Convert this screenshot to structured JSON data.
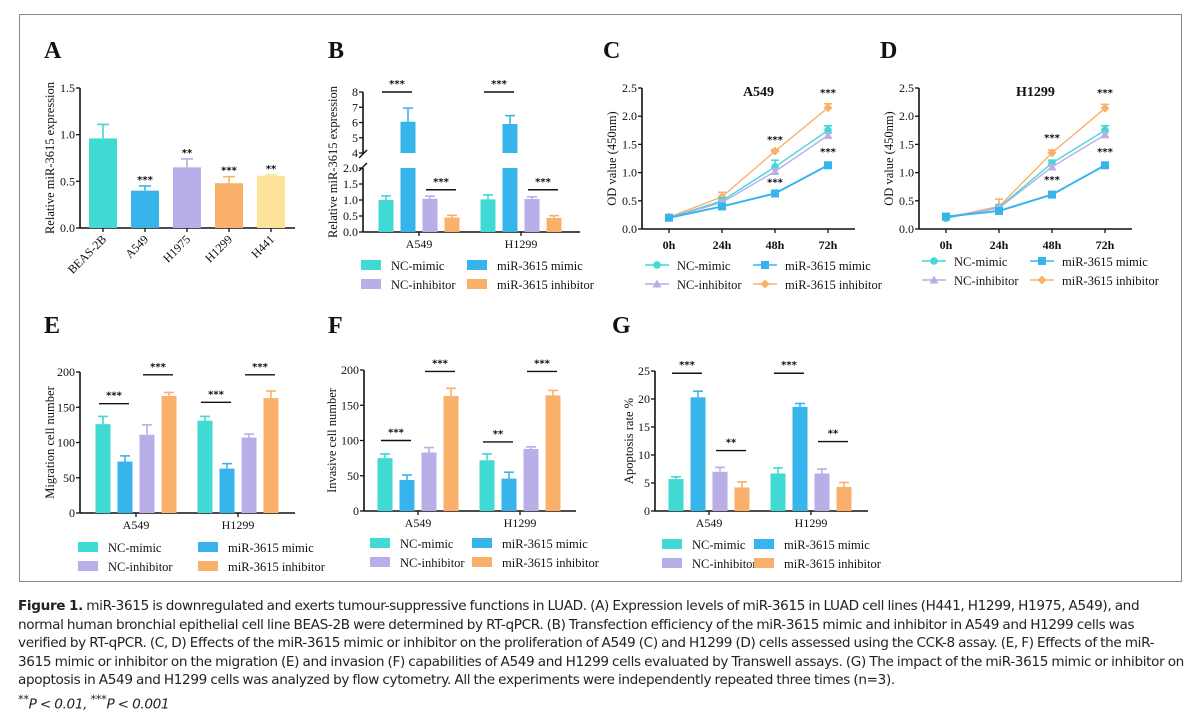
{
  "colors": {
    "nc_mimic": "#40D9D3",
    "mir_mimic": "#38B4EC",
    "nc_inhibitor": "#B9AEE8",
    "mir_inhibitor": "#F9B06A",
    "h441": "#FCE39A"
  },
  "legend": [
    {
      "key": "nc_mimic",
      "label": "NC-mimic"
    },
    {
      "key": "mir_mimic",
      "label": "miR-3615 mimic"
    },
    {
      "key": "nc_inhibitor",
      "label": "NC-inhibitor"
    },
    {
      "key": "mir_inhibitor",
      "label": "miR-3615 inhibitor"
    }
  ],
  "chart_data": [
    {
      "panel": "A",
      "type": "bar",
      "title": "",
      "xlabel": "",
      "ylabel": "Relative miR-3615 expression",
      "ylim": [
        0,
        1.5
      ],
      "yticks": [
        "0.0",
        "0.5",
        "1.0",
        "1.5"
      ],
      "categories": [
        "BEAS-2B",
        "A549",
        "H1975",
        "H1299",
        "H441"
      ],
      "values": [
        0.96,
        0.4,
        0.65,
        0.48,
        0.56
      ],
      "errors": [
        0.15,
        0.05,
        0.09,
        0.07,
        0.01
      ],
      "significance": [
        "",
        "***",
        "**",
        "***",
        "**"
      ],
      "bar_colors": [
        "nc_mimic",
        "mir_mimic",
        "nc_inhibitor",
        "mir_inhibitor",
        "h441"
      ]
    },
    {
      "panel": "B",
      "type": "bar",
      "ylabel": "Relative miR-3615 expression",
      "ylim": [
        0,
        8
      ],
      "axis_break": [
        2.0,
        4
      ],
      "yticks_lower": [
        "0.0",
        "0.5",
        "1.0",
        "1.5",
        "2.0"
      ],
      "yticks_upper": [
        "4",
        "5",
        "6",
        "7",
        "8"
      ],
      "categories": [
        "A549",
        "H1299"
      ],
      "series": [
        {
          "name": "NC-mimic",
          "key": "nc_mimic",
          "values": [
            1.0,
            1.02
          ],
          "errors": [
            0.13,
            0.14
          ]
        },
        {
          "name": "miR-3615 mimic",
          "key": "mir_mimic",
          "values": [
            6.05,
            5.9
          ],
          "errors": [
            0.9,
            0.55
          ]
        },
        {
          "name": "NC-inhibitor",
          "key": "nc_inhibitor",
          "values": [
            1.04,
            1.03
          ],
          "errors": [
            0.08,
            0.07
          ]
        },
        {
          "name": "miR-3615 inhibitor",
          "key": "mir_inhibitor",
          "values": [
            0.45,
            0.44
          ],
          "errors": [
            0.07,
            0.07
          ]
        }
      ],
      "comparisons": [
        {
          "group": 0,
          "pair": [
            0,
            1
          ],
          "label": "***",
          "at": 8.0
        },
        {
          "group": 0,
          "pair": [
            2,
            3
          ],
          "label": "***",
          "at": 1.32
        },
        {
          "group": 1,
          "pair": [
            0,
            1
          ],
          "label": "***",
          "at": 8.0
        },
        {
          "group": 1,
          "pair": [
            2,
            3
          ],
          "label": "***",
          "at": 1.32
        }
      ]
    },
    {
      "panel": "C",
      "type": "line",
      "title": "A549",
      "ylabel": "OD value (450nm)",
      "ylim": [
        0,
        2.5
      ],
      "yticks": [
        "0.0",
        "0.5",
        "1.0",
        "1.5",
        "2.0",
        "2.5"
      ],
      "x": [
        "0h",
        "24h",
        "48h",
        "72h"
      ],
      "series": [
        {
          "name": "NC-mimic",
          "key": "nc_mimic",
          "marker": "circle",
          "values": [
            0.2,
            0.5,
            1.1,
            1.75
          ],
          "errors": [
            0.02,
            0.05,
            0.12,
            0.08
          ]
        },
        {
          "name": "NC-inhibitor",
          "key": "nc_inhibitor",
          "marker": "triangle",
          "values": [
            0.2,
            0.47,
            1.02,
            1.66
          ],
          "errors": [
            0.02,
            0.04,
            0.05,
            0.04
          ]
        },
        {
          "name": "miR-3615 mimic",
          "key": "mir_mimic",
          "marker": "square",
          "values": [
            0.2,
            0.4,
            0.63,
            1.13
          ],
          "errors": [
            0.02,
            0.03,
            0.04,
            0.04
          ]
        },
        {
          "name": "miR-3615 inhibitor",
          "key": "mir_inhibitor",
          "marker": "diamond",
          "values": [
            0.21,
            0.57,
            1.38,
            2.15
          ],
          "errors": [
            0.02,
            0.08,
            0.03,
            0.07
          ]
        }
      ],
      "significance": [
        {
          "x": "48h",
          "y": 1.38,
          "label": "***"
        },
        {
          "x": "48h",
          "y": 0.63,
          "label": "***"
        },
        {
          "x": "72h",
          "y": 2.22,
          "label": "***"
        },
        {
          "x": "72h",
          "y": 1.17,
          "label": "***"
        }
      ]
    },
    {
      "panel": "D",
      "type": "line",
      "title": "H1299",
      "ylabel": "OD value (450nm)",
      "ylim": [
        0,
        2.5
      ],
      "yticks": [
        "0.0",
        "0.5",
        "1.0",
        "1.5",
        "2.0",
        "2.5"
      ],
      "x": [
        "0h",
        "24h",
        "48h",
        "72h"
      ],
      "series": [
        {
          "name": "NC-mimic",
          "key": "nc_mimic",
          "marker": "circle",
          "values": [
            0.19,
            0.38,
            1.17,
            1.75
          ],
          "errors": [
            0.02,
            0.05,
            0.05,
            0.08
          ]
        },
        {
          "name": "NC-inhibitor",
          "key": "nc_inhibitor",
          "marker": "triangle",
          "values": [
            0.21,
            0.37,
            1.1,
            1.67
          ],
          "errors": [
            0.02,
            0.03,
            0.04,
            0.04
          ]
        },
        {
          "name": "miR-3615 mimic",
          "key": "mir_mimic",
          "marker": "square",
          "values": [
            0.22,
            0.32,
            0.61,
            1.13
          ],
          "errors": [
            0.03,
            0.03,
            0.05,
            0.04
          ]
        },
        {
          "name": "miR-3615 inhibitor",
          "key": "mir_inhibitor",
          "marker": "diamond",
          "values": [
            0.2,
            0.4,
            1.35,
            2.14
          ],
          "errors": [
            0.02,
            0.13,
            0.05,
            0.07
          ]
        }
      ],
      "significance": [
        {
          "x": "48h",
          "y": 1.42,
          "label": "***"
        },
        {
          "x": "48h",
          "y": 0.67,
          "label": "***"
        },
        {
          "x": "72h",
          "y": 2.22,
          "label": "***"
        },
        {
          "x": "72h",
          "y": 1.17,
          "label": "***"
        }
      ]
    },
    {
      "panel": "E",
      "type": "bar",
      "ylabel": "Migration cell number",
      "ylim": [
        0,
        200
      ],
      "yticks": [
        "0",
        "50",
        "100",
        "150",
        "200"
      ],
      "categories": [
        "A549",
        "H1299"
      ],
      "series": [
        {
          "name": "NC-mimic",
          "key": "nc_mimic",
          "values": [
            126,
            131
          ],
          "errors": [
            11,
            6
          ]
        },
        {
          "name": "miR-3615 mimic",
          "key": "mir_mimic",
          "values": [
            73,
            63
          ],
          "errors": [
            8,
            7
          ]
        },
        {
          "name": "NC-inhibitor",
          "key": "nc_inhibitor",
          "values": [
            111,
            107
          ],
          "errors": [
            14,
            5
          ]
        },
        {
          "name": "miR-3615 inhibitor",
          "key": "mir_inhibitor",
          "values": [
            166,
            163
          ],
          "errors": [
            5,
            10
          ]
        }
      ],
      "comparisons": [
        {
          "group": 0,
          "pair": [
            0,
            1
          ],
          "label": "***",
          "at": 155
        },
        {
          "group": 0,
          "pair": [
            2,
            3
          ],
          "label": "***",
          "at": 196
        },
        {
          "group": 1,
          "pair": [
            0,
            1
          ],
          "label": "***",
          "at": 157
        },
        {
          "group": 1,
          "pair": [
            2,
            3
          ],
          "label": "***",
          "at": 196
        }
      ]
    },
    {
      "panel": "F",
      "type": "bar",
      "ylabel": "Invasive cell number",
      "ylim": [
        0,
        200
      ],
      "yticks": [
        "0",
        "50",
        "100",
        "150",
        "200"
      ],
      "categories": [
        "A549",
        "H1299"
      ],
      "series": [
        {
          "name": "NC-mimic",
          "key": "nc_mimic",
          "values": [
            75,
            72
          ],
          "errors": [
            6,
            9
          ]
        },
        {
          "name": "miR-3615 mimic",
          "key": "mir_mimic",
          "values": [
            44,
            46
          ],
          "errors": [
            7,
            9
          ]
        },
        {
          "name": "NC-inhibitor",
          "key": "nc_inhibitor",
          "values": [
            83,
            88
          ],
          "errors": [
            7,
            3
          ]
        },
        {
          "name": "miR-3615 inhibitor",
          "key": "mir_inhibitor",
          "values": [
            163,
            164
          ],
          "errors": [
            11,
            7
          ]
        }
      ],
      "comparisons": [
        {
          "group": 0,
          "pair": [
            0,
            1
          ],
          "label": "***",
          "at": 100
        },
        {
          "group": 0,
          "pair": [
            2,
            3
          ],
          "label": "***",
          "at": 198
        },
        {
          "group": 1,
          "pair": [
            0,
            1
          ],
          "label": "**",
          "at": 98
        },
        {
          "group": 1,
          "pair": [
            2,
            3
          ],
          "label": "***",
          "at": 198
        }
      ]
    },
    {
      "panel": "G",
      "type": "bar",
      "ylabel": "Apoptosis rate %",
      "ylim": [
        0,
        25
      ],
      "yticks": [
        "0",
        "5",
        "10",
        "15",
        "20",
        "25"
      ],
      "categories": [
        "A549",
        "H1299"
      ],
      "series": [
        {
          "name": "NC-mimic",
          "key": "nc_mimic",
          "values": [
            5.7,
            6.7
          ],
          "errors": [
            0.4,
            1.0
          ]
        },
        {
          "name": "miR-3615 mimic",
          "key": "mir_mimic",
          "values": [
            20.3,
            18.6
          ],
          "errors": [
            1.1,
            0.6
          ]
        },
        {
          "name": "NC-inhibitor",
          "key": "nc_inhibitor",
          "values": [
            7.0,
            6.7
          ],
          "errors": [
            0.8,
            0.8
          ]
        },
        {
          "name": "miR-3615 inhibitor",
          "key": "mir_inhibitor",
          "values": [
            4.2,
            4.3
          ],
          "errors": [
            1.0,
            0.8
          ]
        }
      ],
      "comparisons": [
        {
          "group": 0,
          "pair": [
            0,
            1
          ],
          "label": "***",
          "at": 24.6
        },
        {
          "group": 0,
          "pair": [
            2,
            3
          ],
          "label": "**",
          "at": 10.8
        },
        {
          "group": 1,
          "pair": [
            0,
            1
          ],
          "label": "***",
          "at": 24.6
        },
        {
          "group": 1,
          "pair": [
            2,
            3
          ],
          "label": "**",
          "at": 12.4
        }
      ]
    }
  ],
  "caption": {
    "label": "Figure 1.",
    "text": " miR-3615 is downregulated and exerts tumour-suppressive functions in LUAD. (A) Expression levels of miR-3615 in LUAD cell lines (H441, H1299, H1975, A549), and normal human bronchial epithelial cell line BEAS-2B were determined by RT-qPCR. (B) Transfection efficiency of the miR-3615 mimic and inhibitor in A549 and H1299 cells was verified by RT-qPCR. (C, D) Effects of the miR-3615 mimic or inhibitor on the proliferation of A549 (C) and H1299 (D) cells assessed using the CCK-8 assay. (E, F) Effects of the miR-3615 mimic or inhibitor on the migration (E) and invasion (F) capabilities of A549 and H1299 cells evaluated by Transwell assays. (G) The impact of the miR-3615 mimic or inhibitor on apoptosis in A549 and H1299 cells was analyzed by flow cytometry. All the experiments were independently repeated three times (n=3).",
    "sig1_stars": "**",
    "sig1_text": "P < 0.01, ",
    "sig2_stars": "***",
    "sig2_text": "P < 0.001"
  }
}
